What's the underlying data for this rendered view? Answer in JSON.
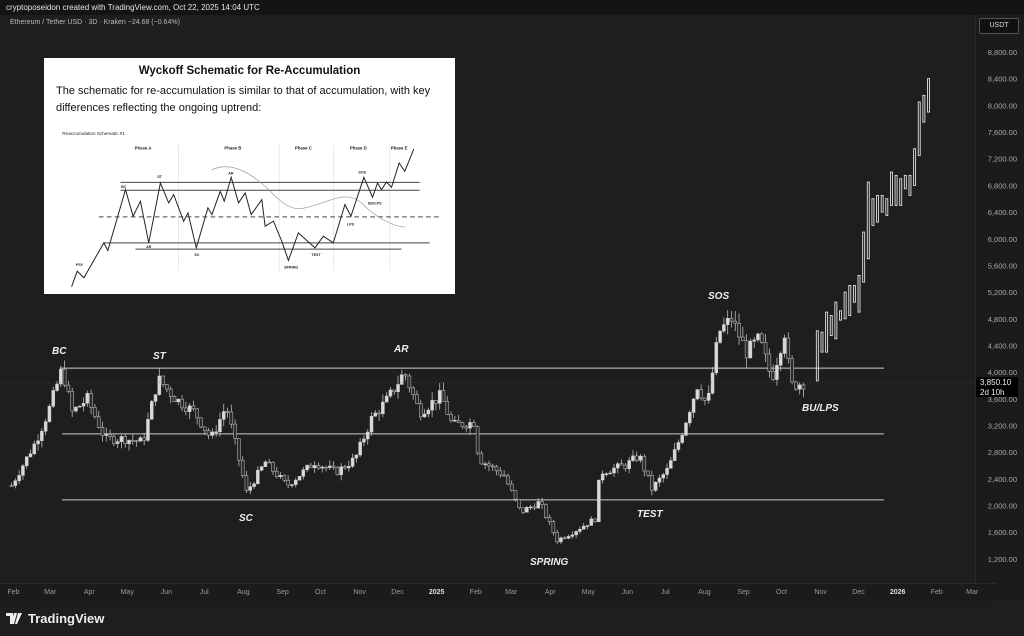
{
  "header": {
    "credit": "cryptoposeidon created with TradingView.com, Oct 22, 2025 14:04 UTC",
    "symbol_line": "Ethereum / Tether USD · 3D · Kraken  −24.68 (−0.64%)",
    "currency_badge": "USDT",
    "last_price": "3,850.10",
    "countdown": "2d 10h"
  },
  "branding": {
    "logo_text": "TradingView",
    "logo_icon": "tradingview-logo-icon"
  },
  "annotations": {
    "bc": "BC",
    "st": "ST",
    "ar": "AR",
    "sc": "SC",
    "spring": "SPRING",
    "test": "TEST",
    "sos": "SOS",
    "bu_lps": "BU/LPS"
  },
  "inset": {
    "title": "Wyckoff Schematic for Re-Accumulation",
    "text": "The schematic for re-accumulation is similar to that of accumulation, with key differences reflecting the ongoing uptrend:",
    "schematic_title": "Reaccumulation Schematic #1",
    "phases": [
      "Phase A",
      "Phase B",
      "Phase C",
      "Phase D",
      "Phase E"
    ],
    "labels": [
      "PSY",
      "BC",
      "AR",
      "ST",
      "SC",
      "AR",
      "SPRING",
      "TEST",
      "LPS",
      "SOS",
      "BU/LPS"
    ]
  },
  "chart_data": {
    "type": "candlestick",
    "title": "",
    "interval": "3D",
    "y_ticks": [
      1200,
      1600,
      2000,
      2400,
      2800,
      3200,
      3600,
      4000,
      4400,
      4800,
      5200,
      5600,
      6000,
      6400,
      6800,
      7200,
      7600,
      8000,
      8400,
      8800
    ],
    "ylim": [
      1000,
      9100
    ],
    "x_tick_labels": [
      "Feb",
      "Mar",
      "Apr",
      "May",
      "Jun",
      "Jul",
      "Aug",
      "Sep",
      "Oct",
      "Nov",
      "Dec",
      "2025",
      "Feb",
      "Mar",
      "Apr",
      "May",
      "Jun",
      "Jul",
      "Aug",
      "Sep",
      "Oct",
      "Nov",
      "Dec",
      "2026",
      "Feb",
      "Mar"
    ],
    "x_range": [
      "2024-01-10",
      "2026-03-15"
    ],
    "price_path": [
      [
        "2024-02-01",
        2300
      ],
      [
        "2024-02-20",
        2950
      ],
      [
        "2024-03-01",
        3400
      ],
      [
        "2024-03-12",
        4050
      ],
      [
        "2024-03-20",
        3400
      ],
      [
        "2024-04-01",
        3600
      ],
      [
        "2024-04-15",
        3000
      ],
      [
        "2024-05-01",
        3000
      ],
      [
        "2024-05-15",
        2950
      ],
      [
        "2024-05-27",
        3900
      ],
      [
        "2024-06-10",
        3600
      ],
      [
        "2024-06-25",
        3400
      ],
      [
        "2024-07-08",
        3000
      ],
      [
        "2024-07-20",
        3500
      ],
      [
        "2024-08-05",
        2200
      ],
      [
        "2024-08-20",
        2650
      ],
      [
        "2024-09-06",
        2300
      ],
      [
        "2024-09-28",
        2650
      ],
      [
        "2024-10-15",
        2500
      ],
      [
        "2024-10-30",
        2700
      ],
      [
        "2024-11-12",
        3300
      ],
      [
        "2024-11-25",
        3600
      ],
      [
        "2024-12-08",
        4000
      ],
      [
        "2024-12-20",
        3400
      ],
      [
        "2025-01-06",
        3650
      ],
      [
        "2025-01-15",
        3200
      ],
      [
        "2025-02-01",
        3250
      ],
      [
        "2025-02-05",
        2700
      ],
      [
        "2025-02-25",
        2450
      ],
      [
        "2025-03-10",
        1900
      ],
      [
        "2025-03-25",
        2050
      ],
      [
        "2025-04-08",
        1480
      ],
      [
        "2025-04-20",
        1600
      ],
      [
        "2025-05-08",
        1800
      ],
      [
        "2025-05-12",
        2500
      ],
      [
        "2025-06-01",
        2600
      ],
      [
        "2025-06-12",
        2750
      ],
      [
        "2025-06-22",
        2250
      ],
      [
        "2025-07-05",
        2550
      ],
      [
        "2025-07-15",
        3050
      ],
      [
        "2025-07-28",
        3800
      ],
      [
        "2025-08-05",
        3500
      ],
      [
        "2025-08-14",
        4600
      ],
      [
        "2025-08-24",
        4800
      ],
      [
        "2025-09-05",
        4300
      ],
      [
        "2025-09-15",
        4500
      ],
      [
        "2025-09-25",
        3900
      ],
      [
        "2025-10-05",
        4600
      ],
      [
        "2025-10-10",
        3800
      ],
      [
        "2025-10-22",
        3850
      ]
    ],
    "projection": {
      "start": "2025-10-31",
      "end": "2026-01-27",
      "bars": [
        [
          3870,
          4620
        ],
        [
          4300,
          4600
        ],
        [
          4300,
          4900
        ],
        [
          4550,
          4850
        ],
        [
          4500,
          5050
        ],
        [
          4780,
          4920
        ],
        [
          4800,
          5200
        ],
        [
          4850,
          5300
        ],
        [
          5050,
          5300
        ],
        [
          4900,
          5450
        ],
        [
          5350,
          6100
        ],
        [
          5700,
          6850
        ],
        [
          6200,
          6600
        ],
        [
          6250,
          6650
        ],
        [
          6400,
          6650
        ],
        [
          6350,
          6600
        ],
        [
          6500,
          7000
        ],
        [
          6500,
          6950
        ],
        [
          6500,
          6900
        ],
        [
          6750,
          6950
        ],
        [
          6650,
          6950
        ],
        [
          6800,
          7350
        ],
        [
          7250,
          8050
        ],
        [
          7750,
          8150
        ],
        [
          7900,
          8400
        ]
      ]
    },
    "levels": [
      4060,
      3075,
      2085
    ],
    "colors": {
      "background": "#1e1e1e",
      "up": "#d9d9d9",
      "down": "#2a2a2a",
      "line": "#cfcfcf"
    }
  }
}
